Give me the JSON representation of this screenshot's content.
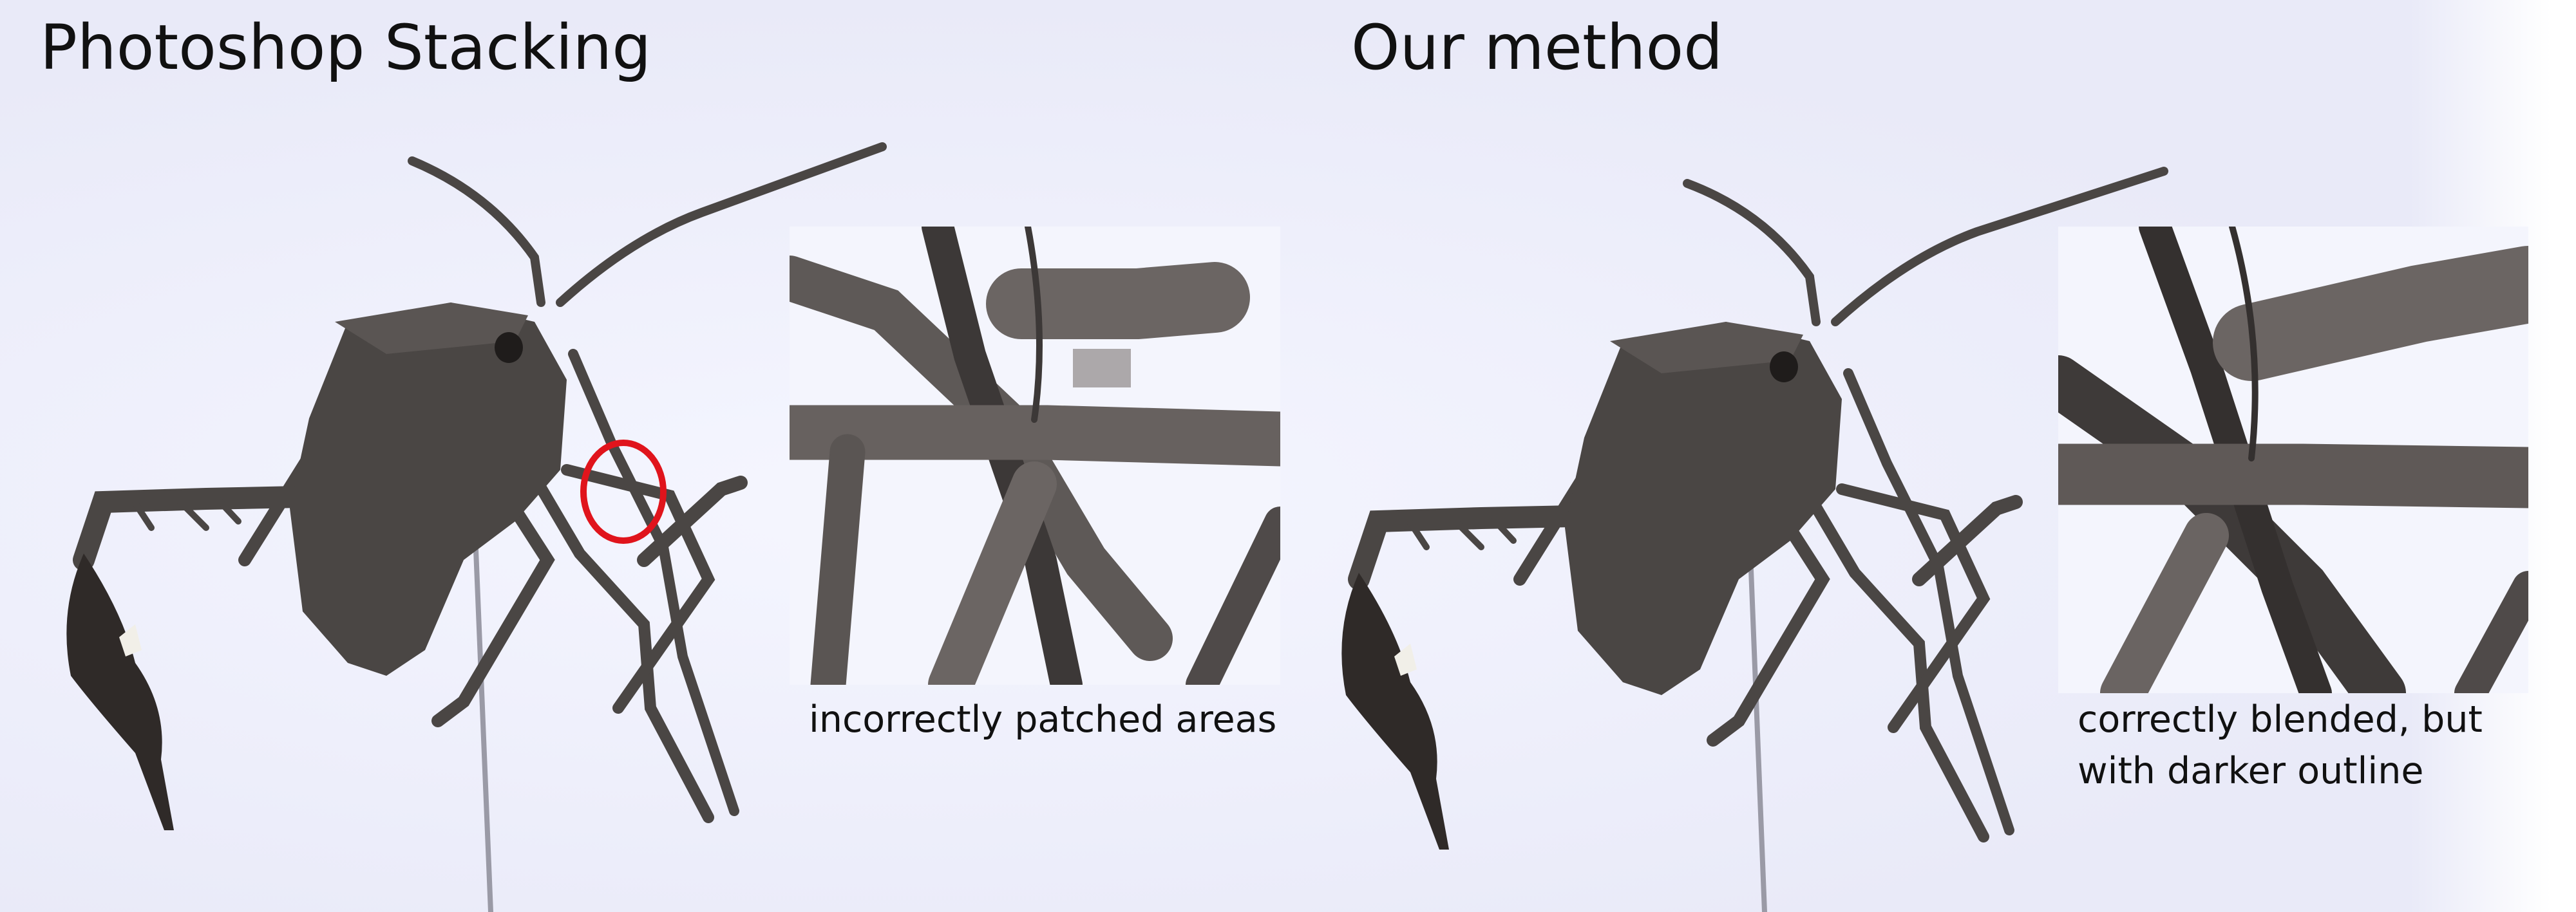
{
  "panels": [
    {
      "title": "Photoshop Stacking",
      "caption_lines": [
        "incorrectly patched areas"
      ]
    },
    {
      "title": "Our method",
      "caption_lines": [
        "correctly blended, but",
        "with darker outline"
      ]
    }
  ],
  "colors": {
    "background": "#ecedfa",
    "insect": "#4a4644",
    "highlight_circle": "#e0141c",
    "text": "#111111"
  }
}
